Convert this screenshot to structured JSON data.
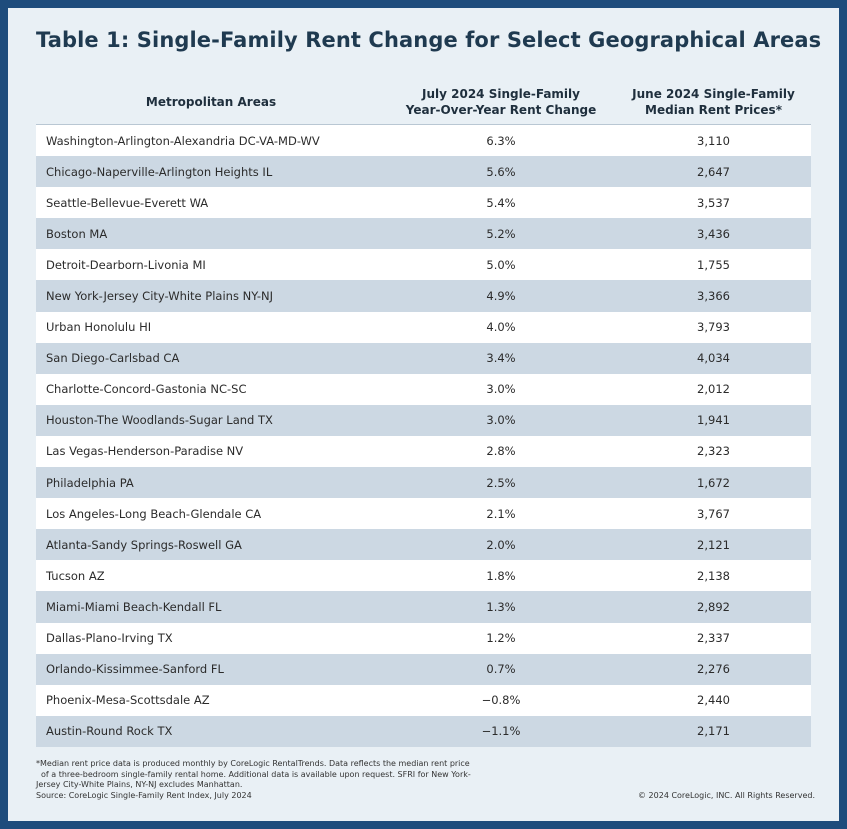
{
  "title": "Table 1: Single-Family Rent Change for Select Geographical Areas",
  "headers": {
    "col1": "Metropolitan Areas",
    "col2_line1": "July 2024 Single-Family",
    "col2_line2": "Year-Over-Year Rent Change",
    "col3_line1": "June 2024 Single-Family",
    "col3_line2": "Median Rent Prices*"
  },
  "rows": [
    {
      "area": "Washington-Arlington-Alexandria DC-VA-MD-WV",
      "change": "6.3%",
      "price": "3,110"
    },
    {
      "area": "Chicago-Naperville-Arlington Heights IL",
      "change": "5.6%",
      "price": "2,647"
    },
    {
      "area": "Seattle-Bellevue-Everett WA",
      "change": "5.4%",
      "price": "3,537"
    },
    {
      "area": "Boston MA",
      "change": "5.2%",
      "price": "3,436"
    },
    {
      "area": "Detroit-Dearborn-Livonia MI",
      "change": "5.0%",
      "price": "1,755"
    },
    {
      "area": "New York-Jersey City-White Plains NY-NJ",
      "change": "4.9%",
      "price": "3,366"
    },
    {
      "area": "Urban Honolulu HI",
      "change": "4.0%",
      "price": "3,793"
    },
    {
      "area": "San Diego-Carlsbad CA",
      "change": "3.4%",
      "price": "4,034"
    },
    {
      "area": "Charlotte-Concord-Gastonia NC-SC",
      "change": "3.0%",
      "price": "2,012"
    },
    {
      "area": "Houston-The Woodlands-Sugar Land TX",
      "change": "3.0%",
      "price": "1,941"
    },
    {
      "area": "Las Vegas-Henderson-Paradise NV",
      "change": "2.8%",
      "price": "2,323"
    },
    {
      "area": "Philadelphia PA",
      "change": "2.5%",
      "price": "1,672"
    },
    {
      "area": "Los Angeles-Long Beach-Glendale CA",
      "change": "2.1%",
      "price": "3,767"
    },
    {
      "area": "Atlanta-Sandy Springs-Roswell GA",
      "change": "2.0%",
      "price": "2,121"
    },
    {
      "area": "Tucson AZ",
      "change": "1.8%",
      "price": "2,138"
    },
    {
      "area": "Miami-Miami Beach-Kendall FL",
      "change": "1.3%",
      "price": "2,892"
    },
    {
      "area": "Dallas-Plano-Irving TX",
      "change": "1.2%",
      "price": "2,337"
    },
    {
      "area": "Orlando-Kissimmee-Sanford FL",
      "change": "0.7%",
      "price": "2,276"
    },
    {
      "area": "Phoenix-Mesa-Scottsdale AZ",
      "change": "−0.8%",
      "price": "2,440"
    },
    {
      "area": "Austin-Round Rock TX",
      "change": "−1.1%",
      "price": "2,171"
    }
  ],
  "footnote": {
    "line1": "*Median rent price data is produced monthly by CoreLogic RentalTrends. Data reflects the median rent price",
    "line2": "of a three-bedroom single-family rental home. Additional data is available upon request. SFRI for New York-",
    "line3": "Jersey City-White Plains, NY-NJ excludes Manhattan.",
    "line4": "Source: CoreLogic Single-Family Rent Index, July 2024"
  },
  "copyright": "© 2024 CoreLogic, INC. All Rights Reserved.",
  "colors": {
    "background": "#1e4c7c",
    "card": "#e9f0f5",
    "row_odd": "#ffffff",
    "row_even": "#ccd8e3",
    "title": "#1f3a50"
  }
}
